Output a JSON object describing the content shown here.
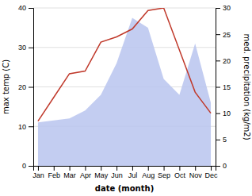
{
  "chart_data": {
    "type": "area",
    "categories": [
      "Jan",
      "Feb",
      "Mar",
      "Apr",
      "May",
      "Jun",
      "Jul",
      "Aug",
      "Sep",
      "Oct",
      "Nov",
      "Dec"
    ],
    "xlabel": "date (month)",
    "ylabel": "max temp (C)",
    "y2label": "med. precipitation (kg/m2)",
    "series": [
      {
        "type": "area",
        "color": "#b8c4ee",
        "values": [
          11.0,
          11.5,
          12.0,
          14.0,
          18.0,
          26.0,
          37.5,
          35.0,
          22.0,
          18.0,
          31.0,
          16.0
        ]
      },
      {
        "type": "line",
        "color": "#c0392b",
        "axis": "y2",
        "values": [
          8.5,
          13.0,
          17.5,
          18.0,
          23.5,
          24.5,
          26.0,
          29.5,
          30.0,
          22.0,
          14.0,
          10.0
        ]
      }
    ],
    "ylim": [
      0,
      40
    ],
    "yticks": [
      0,
      10,
      20,
      30,
      40
    ],
    "y2lim": [
      0,
      30
    ],
    "y2ticks": [
      0,
      5,
      10,
      15,
      20,
      25,
      30
    ],
    "grid": true
  }
}
